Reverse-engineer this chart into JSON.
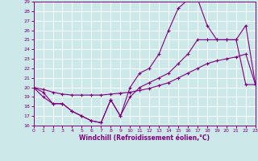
{
  "xlabel": "Windchill (Refroidissement éolien,°C)",
  "background_color": "#cce8e8",
  "line_color": "#800080",
  "grid_color": "#ffffff",
  "xlim": [
    0,
    23
  ],
  "ylim": [
    16,
    29
  ],
  "xticks": [
    0,
    1,
    2,
    3,
    4,
    5,
    6,
    7,
    8,
    9,
    10,
    11,
    12,
    13,
    14,
    15,
    16,
    17,
    18,
    19,
    20,
    21,
    22,
    23
  ],
  "yticks": [
    16,
    17,
    18,
    19,
    20,
    21,
    22,
    23,
    24,
    25,
    26,
    27,
    28,
    29
  ],
  "series": [
    {
      "x": [
        0,
        1,
        2,
        3,
        4,
        5,
        6,
        7,
        8,
        9,
        10,
        11,
        12,
        13,
        14,
        15,
        16,
        17,
        18,
        19,
        20,
        21,
        22,
        23
      ],
      "y": [
        20.0,
        19.0,
        18.3,
        18.3,
        17.5,
        17.0,
        16.5,
        16.3,
        18.7,
        17.0,
        19.0,
        20.0,
        20.5,
        21.0,
        21.5,
        22.5,
        23.5,
        25.0,
        25.0,
        25.0,
        25.0,
        25.0,
        20.3,
        20.3
      ]
    },
    {
      "x": [
        0,
        1,
        2,
        3,
        4,
        5,
        6,
        7,
        8,
        9,
        10,
        11,
        12,
        13,
        14,
        15,
        16,
        17,
        18,
        19,
        20,
        21,
        22,
        23
      ],
      "y": [
        20.0,
        19.8,
        19.5,
        19.3,
        19.2,
        19.2,
        19.2,
        19.2,
        19.3,
        19.4,
        19.5,
        19.7,
        19.9,
        20.2,
        20.5,
        21.0,
        21.5,
        22.0,
        22.5,
        22.8,
        23.0,
        23.2,
        23.5,
        20.3
      ]
    },
    {
      "x": [
        0,
        1,
        2,
        3,
        4,
        5,
        6,
        7,
        8,
        9,
        10,
        11,
        12,
        13,
        14,
        15,
        16,
        17,
        18,
        19,
        20,
        21,
        22,
        23
      ],
      "y": [
        20.0,
        19.5,
        18.3,
        18.3,
        17.5,
        17.0,
        16.5,
        16.3,
        18.7,
        17.0,
        20.0,
        21.5,
        22.0,
        23.5,
        26.0,
        28.3,
        29.2,
        29.3,
        26.5,
        25.0,
        25.0,
        25.0,
        26.5,
        20.3
      ]
    }
  ]
}
